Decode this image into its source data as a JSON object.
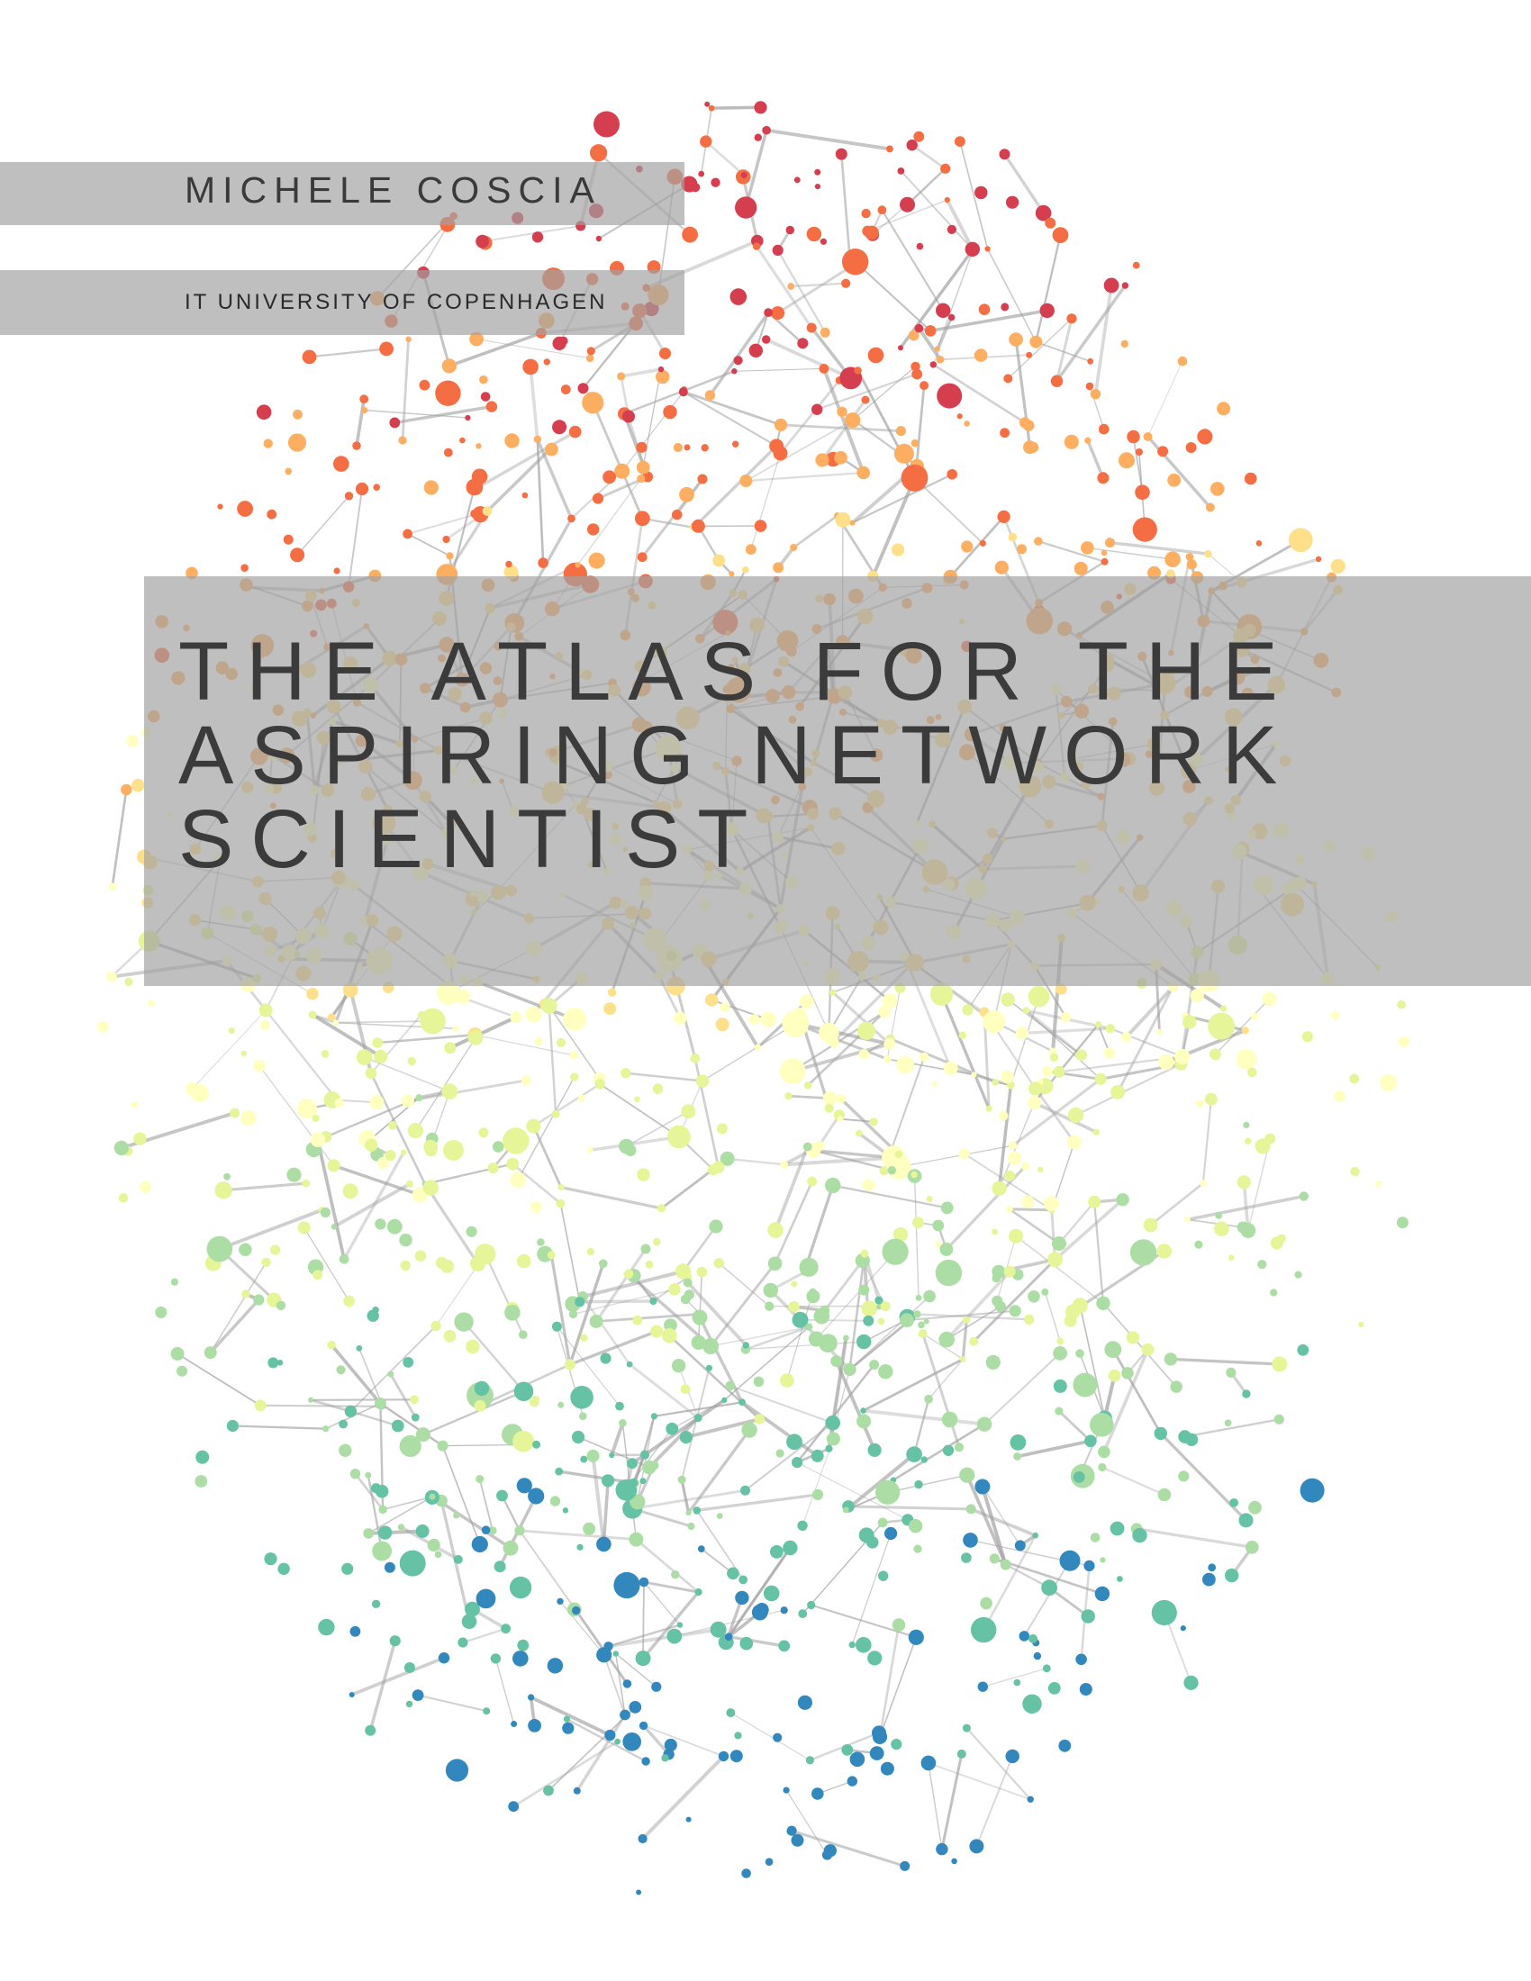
{
  "cover": {
    "author": "MICHELE COSCIA",
    "affiliation": "IT UNIVERSITY OF COPENHAGEN",
    "title_lines": [
      "THE ATLAS FOR THE",
      "ASPIRING NETWORK",
      "SCIENTIST"
    ]
  },
  "colors": {
    "background": "#ffffff",
    "edge": "#a0a0a0",
    "band": "#a0a0a0",
    "text": "#3a3a3a",
    "node_palette": [
      "#d53e4f",
      "#f46d43",
      "#fdae61",
      "#fee08b",
      "#ffffbf",
      "#e6f598",
      "#abdda4",
      "#66c2a5",
      "#3288bd"
    ]
  }
}
